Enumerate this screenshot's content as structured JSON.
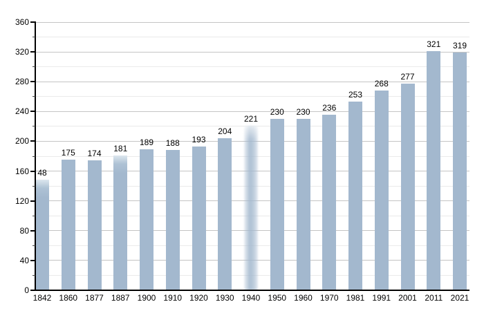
{
  "chart_data": {
    "type": "bar",
    "title": "",
    "xlabel": "",
    "ylabel": "",
    "categories": [
      "1842",
      "1860",
      "1877",
      "1887",
      "1900",
      "1910",
      "1920",
      "1930",
      "1940",
      "1950",
      "1960",
      "1970",
      "1981",
      "1991",
      "2001",
      "2011",
      "2021"
    ],
    "values": [
      148,
      175,
      174,
      181,
      189,
      188,
      193,
      204,
      221,
      230,
      230,
      236,
      253,
      268,
      277,
      321,
      319
    ],
    "bar_labels": [
      "48",
      "175",
      "174",
      "181",
      "189",
      "188",
      "193",
      "204",
      "221",
      "230",
      "230",
      "236",
      "253",
      "268",
      "277",
      "321",
      "319"
    ],
    "y_tick_labels": [
      "0",
      "40",
      "80",
      "120",
      "160",
      "200",
      "240",
      "280",
      "320",
      "360"
    ],
    "ylim": [
      0,
      360
    ],
    "y_major_step": 40,
    "y_minor_step": 20,
    "grid": "horizontal",
    "legend": "none",
    "colors": {
      "bar": "#a3b8ce",
      "major_grid": "#c4c4c4",
      "minor_grid": "#eaeaea",
      "axis": "#000000",
      "background": "#ffffff",
      "label_text": "#000000"
    },
    "style_notes": {
      "faded_top_bars": [
        "1842",
        "1887"
      ],
      "soft_blurred_bar": "1940",
      "first_label_clipped_by_axis": true
    }
  }
}
